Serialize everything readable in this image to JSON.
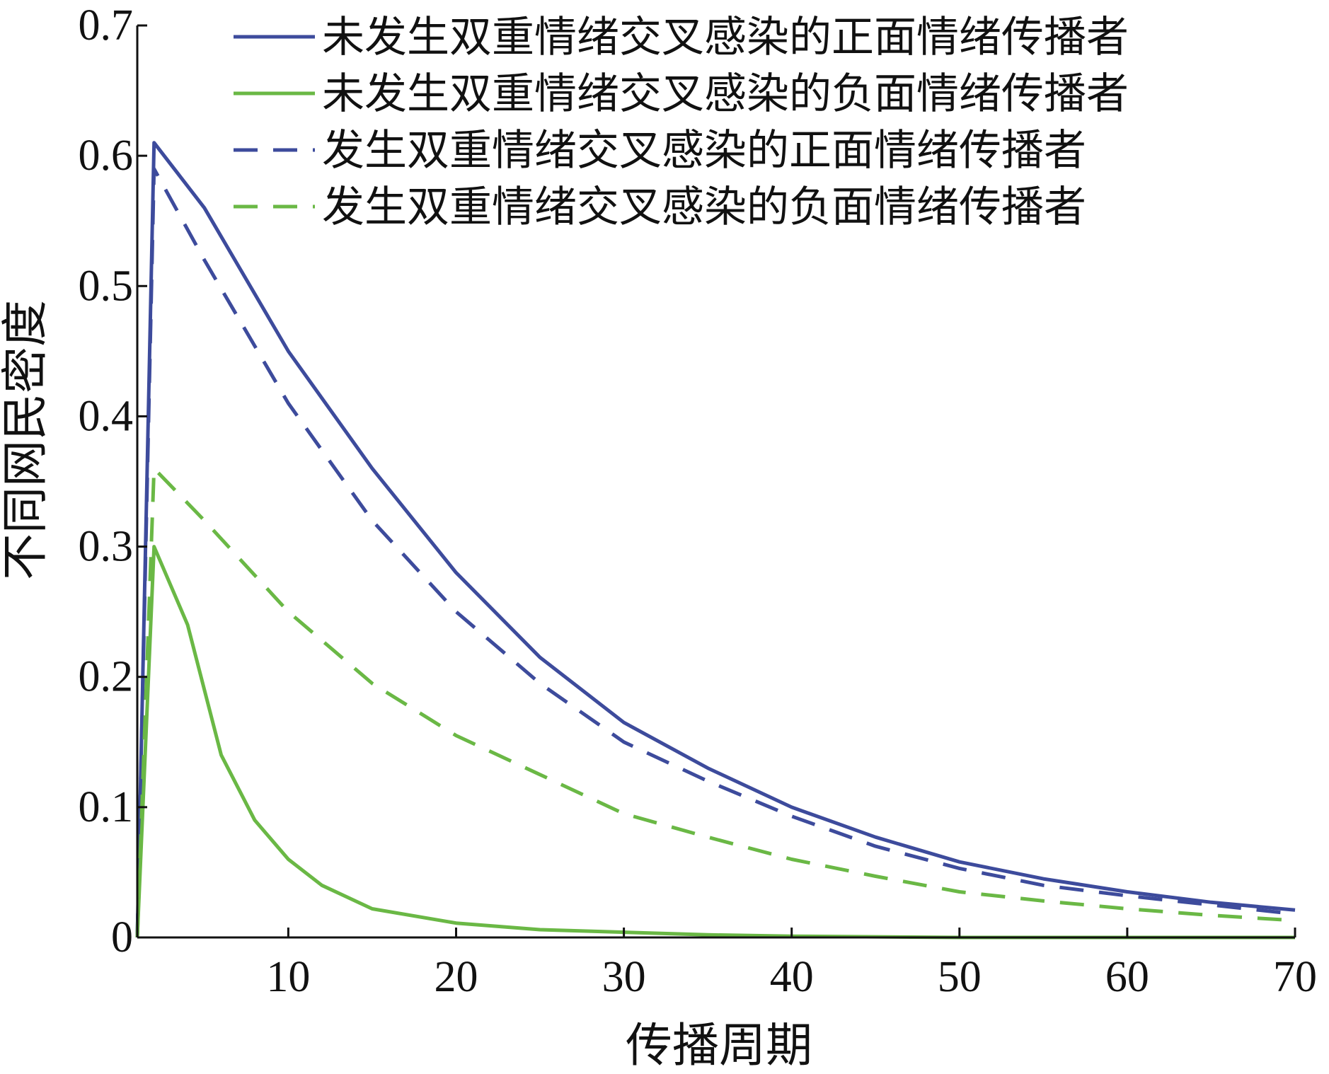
{
  "chart_data": {
    "type": "line",
    "title": "",
    "xlabel": "传播周期",
    "ylabel": "不同网民密度",
    "xlim": [
      1,
      70
    ],
    "ylim": [
      0,
      0.7
    ],
    "xticks": [
      10,
      20,
      30,
      40,
      50,
      60,
      70
    ],
    "xtick_labels": [
      "10",
      "20",
      "30",
      "40",
      "50",
      "60",
      "70"
    ],
    "yticks": [
      0,
      0.1,
      0.2,
      0.3,
      0.4,
      0.5,
      0.6,
      0.7
    ],
    "ytick_labels": [
      "0",
      "0.1",
      "0.2",
      "0.3",
      "0.4",
      "0.5",
      "0.6",
      "0.7"
    ],
    "grid": false,
    "legend_position": "top-right",
    "series": [
      {
        "name": "未发生双重情绪交叉感染的正面情绪传播者",
        "color": "#3d4b9c",
        "dash": "solid",
        "points": [
          [
            1,
            0
          ],
          [
            2,
            0.61
          ],
          [
            5,
            0.56
          ],
          [
            10,
            0.45
          ],
          [
            15,
            0.36
          ],
          [
            20,
            0.28
          ],
          [
            25,
            0.215
          ],
          [
            30,
            0.165
          ],
          [
            35,
            0.13
          ],
          [
            40,
            0.1
          ],
          [
            45,
            0.077
          ],
          [
            50,
            0.058
          ],
          [
            55,
            0.045
          ],
          [
            60,
            0.035
          ],
          [
            65,
            0.027
          ],
          [
            70,
            0.021
          ]
        ]
      },
      {
        "name": "未发生双重情绪交叉感染的负面情绪传播者",
        "color": "#6ab845",
        "dash": "solid",
        "points": [
          [
            1,
            0
          ],
          [
            2,
            0.3
          ],
          [
            4,
            0.24
          ],
          [
            6,
            0.14
          ],
          [
            8,
            0.09
          ],
          [
            10,
            0.06
          ],
          [
            12,
            0.04
          ],
          [
            15,
            0.022
          ],
          [
            20,
            0.011
          ],
          [
            25,
            0.006
          ],
          [
            30,
            0.004
          ],
          [
            35,
            0.002
          ],
          [
            40,
            0.001
          ],
          [
            50,
            0
          ],
          [
            60,
            0
          ],
          [
            70,
            0
          ]
        ]
      },
      {
        "name": "发生双重情绪交叉感染的正面情绪传播者",
        "color": "#3d4b9c",
        "dash": "dashed",
        "points": [
          [
            1,
            0
          ],
          [
            2,
            0.59
          ],
          [
            5,
            0.52
          ],
          [
            10,
            0.41
          ],
          [
            15,
            0.32
          ],
          [
            20,
            0.25
          ],
          [
            25,
            0.195
          ],
          [
            30,
            0.15
          ],
          [
            35,
            0.12
          ],
          [
            40,
            0.093
          ],
          [
            45,
            0.07
          ],
          [
            50,
            0.053
          ],
          [
            55,
            0.04
          ],
          [
            60,
            0.032
          ],
          [
            65,
            0.025
          ],
          [
            70,
            0.018
          ]
        ]
      },
      {
        "name": "发生双重情绪交叉感染的负面情绪传播者",
        "color": "#6ab845",
        "dash": "dashed",
        "points": [
          [
            1,
            0
          ],
          [
            2,
            0.36
          ],
          [
            5,
            0.32
          ],
          [
            10,
            0.25
          ],
          [
            15,
            0.195
          ],
          [
            20,
            0.155
          ],
          [
            25,
            0.125
          ],
          [
            30,
            0.095
          ],
          [
            35,
            0.077
          ],
          [
            40,
            0.06
          ],
          [
            45,
            0.047
          ],
          [
            50,
            0.035
          ],
          [
            55,
            0.028
          ],
          [
            60,
            0.022
          ],
          [
            65,
            0.017
          ],
          [
            70,
            0.013
          ]
        ]
      }
    ]
  }
}
